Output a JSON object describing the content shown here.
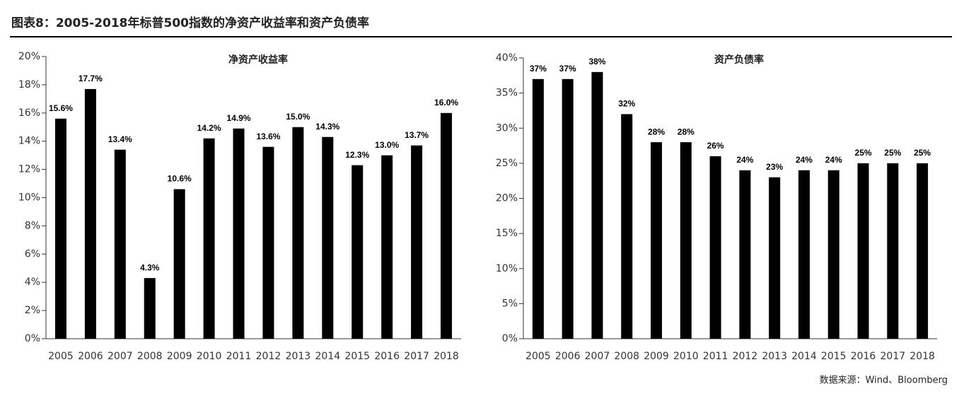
{
  "title": "图表8：2005-2018年标普500指数的净资产收益率和资产负债率",
  "source": "数据来源：Wind、Bloomberg",
  "chart_data": [
    {
      "type": "bar",
      "title": "净资产收益率",
      "color": "#000000",
      "categories": [
        "2005",
        "2006",
        "2007",
        "2008",
        "2009",
        "2010",
        "2011",
        "2012",
        "2013",
        "2014",
        "2015",
        "2016",
        "2017",
        "2018"
      ],
      "values": [
        15.6,
        17.7,
        13.4,
        4.3,
        10.6,
        14.2,
        14.9,
        13.6,
        15.0,
        14.3,
        12.3,
        13.0,
        13.7,
        16.0
      ],
      "value_labels": [
        "15.6%",
        "17.7%",
        "13.4%",
        "4.3%",
        "10.6%",
        "14.2%",
        "14.9%",
        "13.6%",
        "15.0%",
        "14.3%",
        "12.3%",
        "13.0%",
        "13.7%",
        "16.0%"
      ],
      "ylim": [
        0,
        20
      ],
      "yticks": [
        {
          "value": 0,
          "label": "0%"
        },
        {
          "value": 2,
          "label": "2%"
        },
        {
          "value": 4,
          "label": "4%"
        },
        {
          "value": 6,
          "label": "6%"
        },
        {
          "value": 8,
          "label": "8%"
        },
        {
          "value": 10,
          "label": "10%"
        },
        {
          "value": 12,
          "label": "12%"
        },
        {
          "value": 14,
          "label": "14%"
        },
        {
          "value": 16,
          "label": "16%"
        },
        {
          "value": 18,
          "label": "18%"
        },
        {
          "value": 20,
          "label": "20%"
        }
      ]
    },
    {
      "type": "bar",
      "title": "资产负债率",
      "color": "#000000",
      "categories": [
        "2005",
        "2006",
        "2007",
        "2008",
        "2009",
        "2010",
        "2011",
        "2012",
        "2013",
        "2014",
        "2015",
        "2016",
        "2017",
        "2018"
      ],
      "values": [
        37,
        37,
        38,
        32,
        28,
        28,
        26,
        24,
        23,
        24,
        24,
        25,
        25,
        25
      ],
      "value_labels": [
        "37%",
        "37%",
        "38%",
        "32%",
        "28%",
        "28%",
        "26%",
        "24%",
        "23%",
        "24%",
        "24%",
        "25%",
        "25%",
        "25%"
      ],
      "ylim": [
        0,
        40
      ],
      "yticks": [
        {
          "value": 0,
          "label": "0%"
        },
        {
          "value": 5,
          "label": "5%"
        },
        {
          "value": 10,
          "label": "10%"
        },
        {
          "value": 15,
          "label": "15%"
        },
        {
          "value": 20,
          "label": "20%"
        },
        {
          "value": 25,
          "label": "25%"
        },
        {
          "value": 30,
          "label": "30%"
        },
        {
          "value": 35,
          "label": "35%"
        },
        {
          "value": 40,
          "label": "40%"
        }
      ]
    }
  ]
}
